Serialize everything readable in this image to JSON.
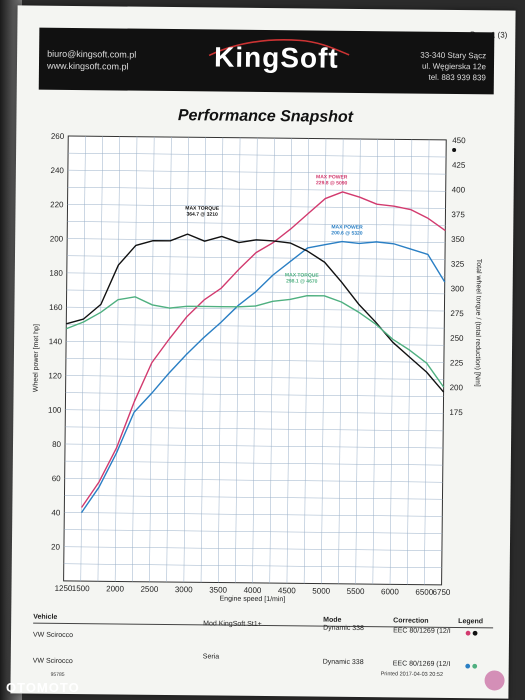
{
  "header": {
    "page_indicator": "Page 1 (3)",
    "email": "biuro@kingsoft.com.pl",
    "website": "www.kingsoft.com.pl",
    "logo_text": "KingSoft",
    "address_line1": "33-340 Stary Sącz",
    "address_line2": "ul. Węgierska 12e",
    "phone": "tel. 883 939 839"
  },
  "title": "Performance Snapshot",
  "chart_data": {
    "type": "line",
    "title": "Performance Snapshot",
    "xlabel": "Engine speed [1/min]",
    "ylabel_left": "Wheel power [met hp]",
    "ylabel_right": "Total wheel torque / (total reduction) [Nm]",
    "xlim": [
      1250,
      6750
    ],
    "ylim_left": [
      0,
      260
    ],
    "ylim_right": [
      0,
      450
    ],
    "x_ticks": [
      1250,
      1500,
      2000,
      2500,
      3000,
      3500,
      4000,
      4500,
      5000,
      5500,
      6000,
      6500,
      6750
    ],
    "y_left_ticks": [
      20,
      40,
      60,
      80,
      100,
      120,
      140,
      160,
      180,
      200,
      220,
      240,
      260
    ],
    "y_right_ticks": [
      175,
      200,
      225,
      250,
      275,
      300,
      325,
      350,
      375,
      400,
      425,
      450
    ],
    "grid": true,
    "series": [
      {
        "name": "",
        "color": "#d23a6e",
        "axis": "left",
        "x": [
          1500,
          1750,
          2000,
          2250,
          2500,
          2750,
          3000,
          3250,
          3500,
          3750,
          4000,
          4250,
          4500,
          4750,
          5000,
          5250,
          5500,
          5750,
          6000,
          6250,
          6500,
          6750
        ],
        "y": [
          43,
          58,
          78,
          105,
          128,
          142,
          155,
          165,
          172,
          183,
          193,
          199,
          207,
          216,
          225,
          229,
          226,
          222,
          221,
          219,
          214,
          207
        ]
      },
      {
        "name": "",
        "color": "#2a7fc4",
        "axis": "left",
        "x": [
          1500,
          1750,
          2000,
          2250,
          2500,
          2750,
          3000,
          3250,
          3500,
          3750,
          4000,
          4250,
          4500,
          4750,
          5000,
          5250,
          5500,
          5750,
          6000,
          6250,
          6500,
          6750
        ],
        "y": [
          40,
          55,
          75,
          99,
          110,
          122,
          133,
          143,
          152,
          162,
          170,
          180,
          188,
          196,
          198,
          200,
          199,
          200,
          199,
          196,
          193,
          177
        ]
      },
      {
        "name": "",
        "color": "#111111",
        "axis": "right",
        "x": [
          1250,
          1500,
          1750,
          2000,
          2250,
          2500,
          2750,
          3000,
          3250,
          3500,
          3750,
          4000,
          4250,
          4500,
          4750,
          5000,
          5250,
          5500,
          5750,
          6000,
          6250,
          6500,
          6750
        ],
        "y": [
          260,
          265,
          280,
          320,
          340,
          345,
          345,
          352,
          345,
          350,
          344,
          347,
          346,
          344,
          336,
          325,
          305,
          283,
          265,
          245,
          230,
          215,
          195
        ]
      },
      {
        "name": "",
        "color": "#4fb080",
        "axis": "right",
        "x": [
          1250,
          1500,
          1750,
          2000,
          2250,
          2500,
          2750,
          3000,
          3250,
          3500,
          3750,
          4000,
          4250,
          4500,
          4750,
          5000,
          5250,
          5500,
          5750,
          6000,
          6250,
          6500,
          6750
        ],
        "y": [
          255,
          262,
          272,
          285,
          288,
          280,
          277,
          279,
          279,
          279,
          279,
          280,
          285,
          287,
          291,
          291,
          285,
          275,
          263,
          248,
          237,
          224,
          200
        ]
      }
    ],
    "annotations": [
      {
        "text": "MAX TORQUE",
        "value": "364.7 @ 3210",
        "color": "#111111"
      },
      {
        "text": "MAX POWER",
        "value": "229.8 @ 5090",
        "color": "#d23a6e"
      },
      {
        "text": "MAX POWER",
        "value": "200.6 @ 5320",
        "color": "#2a7fc4"
      },
      {
        "text": "MAX TORQUE",
        "value": "298.1 @ 4670",
        "color": "#4fb080"
      }
    ]
  },
  "table": {
    "headers": {
      "vehicle": "Vehicle",
      "mode": "Mode",
      "correction": "Correction",
      "legend": "Legend"
    },
    "rows": [
      {
        "vehicle": "VW Scirocco",
        "note": "Mod KingSoft St1+",
        "mode": "Dynamic 338",
        "correction": "EEC 80/1269 (12/I",
        "legend_colors": [
          "#d23a6e",
          "#111111"
        ]
      },
      {
        "vehicle": "VW Scirocco",
        "note": "Seria",
        "mode": "Dynamic 338",
        "correction": "EEC 80/1269 (12/I",
        "legend_colors": [
          "#2a7fc4",
          "#4fb080"
        ]
      }
    ]
  },
  "footer": {
    "printed": "Printed 2017-04-03 20:52",
    "doc_id": "95785",
    "watermark": "OTOMOTO"
  }
}
